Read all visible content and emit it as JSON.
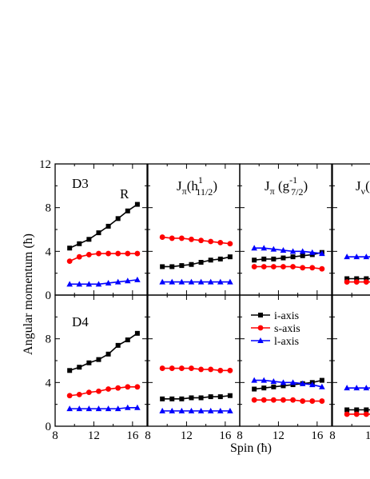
{
  "chart_data": {
    "type": "line",
    "ylabel": "Angular momentum (ħ)",
    "xlabel": "Spin (ħ)",
    "x_ticks": [
      "8",
      "12",
      "16"
    ],
    "y_ticks": [
      "0",
      "4",
      "8",
      "12"
    ],
    "xlim": [
      8,
      17.5
    ],
    "ylim": [
      0,
      12
    ],
    "x": [
      9.5,
      10.5,
      11.5,
      12.5,
      13.5,
      14.5,
      15.5,
      16.5
    ],
    "column_titles": [
      {
        "base": "",
        "sub": "",
        "sup": "",
        "suffix": "",
        "suffix_sub": "",
        "suffix_sup": ""
      },
      {
        "base": "J",
        "sub": "π",
        "sup": "",
        "suffix": "(h",
        "suffix_sub": "11/2",
        "suffix_sup": "1",
        "close": ")"
      },
      {
        "base": "J",
        "sub": "π",
        "sup": "",
        "suffix": " (g",
        "suffix_sub": "7/2",
        "suffix_sup": "-1",
        "close": ")"
      },
      {
        "base": "J",
        "sub": "ν",
        "sup": "",
        "suffix": "(",
        "suffix_sub": "",
        "suffix_sup": "",
        "close": ""
      }
    ],
    "row_labels": [
      "D3",
      "D4"
    ],
    "extra_label": "R",
    "legend": [
      {
        "name": "i-axis",
        "color": "#000000",
        "marker": "square"
      },
      {
        "name": "s-axis",
        "color": "#ff0000",
        "marker": "circle"
      },
      {
        "name": "l-axis",
        "color": "#0000ff",
        "marker": "triangle"
      }
    ],
    "panels": [
      {
        "row": 0,
        "col": 0,
        "series": [
          {
            "values": [
              4.3,
              4.7,
              5.1,
              5.7,
              6.3,
              7.0,
              7.7,
              8.3
            ]
          },
          {
            "values": [
              3.1,
              3.5,
              3.7,
              3.8,
              3.8,
              3.8,
              3.8,
              3.8
            ]
          },
          {
            "values": [
              1.0,
              1.0,
              1.0,
              1.0,
              1.1,
              1.2,
              1.3,
              1.4
            ]
          }
        ]
      },
      {
        "row": 0,
        "col": 1,
        "series": [
          {
            "values": [
              2.6,
              2.6,
              2.7,
              2.8,
              3.0,
              3.2,
              3.3,
              3.5
            ]
          },
          {
            "values": [
              5.3,
              5.2,
              5.2,
              5.1,
              5.0,
              4.9,
              4.8,
              4.7
            ]
          },
          {
            "values": [
              1.2,
              1.2,
              1.2,
              1.2,
              1.2,
              1.2,
              1.2,
              1.2
            ]
          }
        ]
      },
      {
        "row": 0,
        "col": 2,
        "series": [
          {
            "values": [
              3.2,
              3.3,
              3.3,
              3.4,
              3.5,
              3.6,
              3.7,
              3.9
            ]
          },
          {
            "values": [
              2.6,
              2.6,
              2.6,
              2.6,
              2.6,
              2.5,
              2.5,
              2.4
            ]
          },
          {
            "values": [
              4.3,
              4.3,
              4.2,
              4.1,
              4.0,
              4.0,
              3.9,
              3.8
            ]
          }
        ]
      },
      {
        "row": 0,
        "col": 3,
        "series": [
          {
            "values": [
              1.5,
              1.5,
              1.5,
              1.5
            ]
          },
          {
            "values": [
              1.2,
              1.2,
              1.2,
              1.2
            ]
          },
          {
            "values": [
              3.5,
              3.5,
              3.5,
              3.5
            ]
          }
        ]
      },
      {
        "row": 1,
        "col": 0,
        "series": [
          {
            "values": [
              5.1,
              5.4,
              5.8,
              6.1,
              6.6,
              7.4,
              7.9,
              8.5
            ]
          },
          {
            "values": [
              2.8,
              2.9,
              3.1,
              3.2,
              3.4,
              3.5,
              3.6,
              3.6
            ]
          },
          {
            "values": [
              1.6,
              1.6,
              1.6,
              1.6,
              1.6,
              1.6,
              1.7,
              1.7
            ]
          }
        ]
      },
      {
        "row": 1,
        "col": 1,
        "series": [
          {
            "values": [
              2.5,
              2.5,
              2.5,
              2.6,
              2.6,
              2.7,
              2.7,
              2.8
            ]
          },
          {
            "values": [
              5.3,
              5.3,
              5.3,
              5.3,
              5.2,
              5.2,
              5.1,
              5.1
            ]
          },
          {
            "values": [
              1.4,
              1.4,
              1.4,
              1.4,
              1.4,
              1.4,
              1.4,
              1.4
            ]
          }
        ]
      },
      {
        "row": 1,
        "col": 2,
        "series": [
          {
            "values": [
              3.4,
              3.5,
              3.6,
              3.7,
              3.8,
              3.9,
              4.0,
              4.2
            ]
          },
          {
            "values": [
              2.4,
              2.4,
              2.4,
              2.4,
              2.4,
              2.3,
              2.3,
              2.3
            ]
          },
          {
            "values": [
              4.2,
              4.2,
              4.1,
              4.0,
              4.0,
              3.9,
              3.8,
              3.6
            ]
          }
        ]
      },
      {
        "row": 1,
        "col": 3,
        "series": [
          {
            "values": [
              1.5,
              1.5,
              1.5,
              1.5
            ]
          },
          {
            "values": [
              1.1,
              1.1,
              1.1,
              1.1
            ]
          },
          {
            "values": [
              3.5,
              3.5,
              3.5,
              3.5
            ]
          }
        ]
      }
    ]
  }
}
